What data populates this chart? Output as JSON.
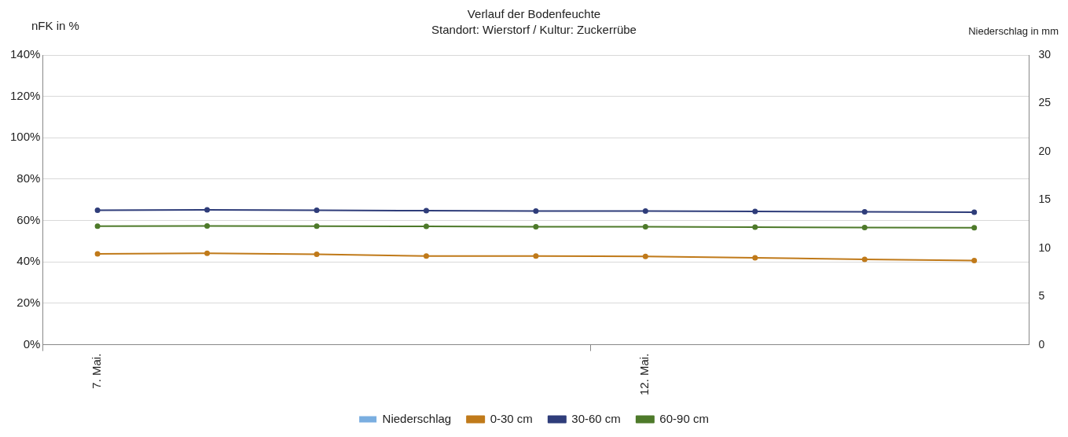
{
  "chart_data": {
    "type": "line",
    "title": "Verlauf der Bodenfeuchte",
    "subtitle": "Standort: Wierstorf / Kultur: Zuckerrübe",
    "ylabel": "nFK in %",
    "y2label": "Niederschlag in mm",
    "categories": [
      "7. Mai.",
      null,
      null,
      null,
      null,
      "12. Mai.",
      null,
      null,
      null
    ],
    "series": [
      {
        "name": "Niederschlag",
        "type": "bar",
        "color": "#7aaee0",
        "values": [
          0,
          0,
          0,
          0,
          0,
          0,
          0,
          0,
          0
        ]
      },
      {
        "name": "0-30 cm",
        "color": "#c07a1a",
        "values": [
          43.9,
          44.2,
          43.7,
          42.9,
          42.9,
          42.7,
          42,
          41.3,
          40.7
        ]
      },
      {
        "name": "30-60 cm",
        "color": "#2f3d7a",
        "values": [
          65,
          65.2,
          65,
          64.8,
          64.6,
          64.6,
          64.4,
          64.2,
          64
        ]
      },
      {
        "name": "60-90 cm",
        "color": "#4e7a2a",
        "values": [
          57.3,
          57.4,
          57.3,
          57.2,
          57,
          57,
          56.8,
          56.6,
          56.5
        ]
      }
    ],
    "ylim": [
      0,
      140
    ],
    "yticks": [
      {
        "value": 0,
        "label": "0%"
      },
      {
        "value": 20,
        "label": "20%"
      },
      {
        "value": 40,
        "label": "40%"
      },
      {
        "value": 60,
        "label": "60%"
      },
      {
        "value": 80,
        "label": "80%"
      },
      {
        "value": 100,
        "label": "100%"
      },
      {
        "value": 120,
        "label": "120%"
      },
      {
        "value": 140,
        "label": "140%"
      }
    ],
    "y2lim": [
      0,
      30
    ],
    "y2ticks": [
      0,
      5,
      10,
      15,
      20,
      25,
      30
    ],
    "grid": "y",
    "legend": "bottom",
    "marker": "circle",
    "line_style": "solid"
  }
}
